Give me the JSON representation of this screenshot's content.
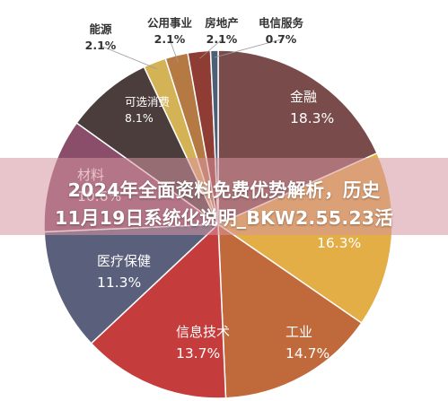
{
  "chart_data": {
    "type": "pie",
    "slices": [
      {
        "label": "金融",
        "value": 18.3,
        "display": "18.3%",
        "color": "#7a4b4b",
        "text_color": "#ffffff"
      },
      {
        "label": "",
        "value": 16.3,
        "display": "16.3%",
        "color": "#e3ae45",
        "text_color": "#ffffff"
      },
      {
        "label": "工业",
        "value": 14.7,
        "display": "14.7%",
        "color": "#c06a3c",
        "text_color": "#ffffff"
      },
      {
        "label": "信息技术",
        "value": 13.7,
        "display": "13.7%",
        "color": "#c43c3b",
        "text_color": "#ffffff"
      },
      {
        "label": "医疗保健",
        "value": 11.3,
        "display": "11.3%",
        "color": "#5a5f7c",
        "text_color": "#ffffff"
      },
      {
        "label": "材料",
        "value": 10.6,
        "display": "10.6%",
        "color": "#8a4e6a",
        "text_color": "#ffffff"
      },
      {
        "label": "可选消费",
        "value": 8.1,
        "display": "8.1%",
        "color": "#4a3d3c",
        "text_color": "#ffffff"
      },
      {
        "label": "能源",
        "value": 2.1,
        "display": "2.1%",
        "color": "#d4b256",
        "text_color": "#333333"
      },
      {
        "label": "公用事业",
        "value": 2.1,
        "display": "2.1%",
        "color": "#b57a43",
        "text_color": "#333333"
      },
      {
        "label": "房地产",
        "value": 2.1,
        "display": "2.1%",
        "color": "#8e3c34",
        "text_color": "#333333"
      },
      {
        "label": "电信服务",
        "value": 0.7,
        "display": "0.7%",
        "color": "#4d5f77",
        "text_color": "#333333"
      }
    ]
  },
  "overlay": {
    "line1": "2024年全面资料免费优势解析，历史",
    "line2": "11月19日系统化说明_BKW2.55.23活"
  }
}
